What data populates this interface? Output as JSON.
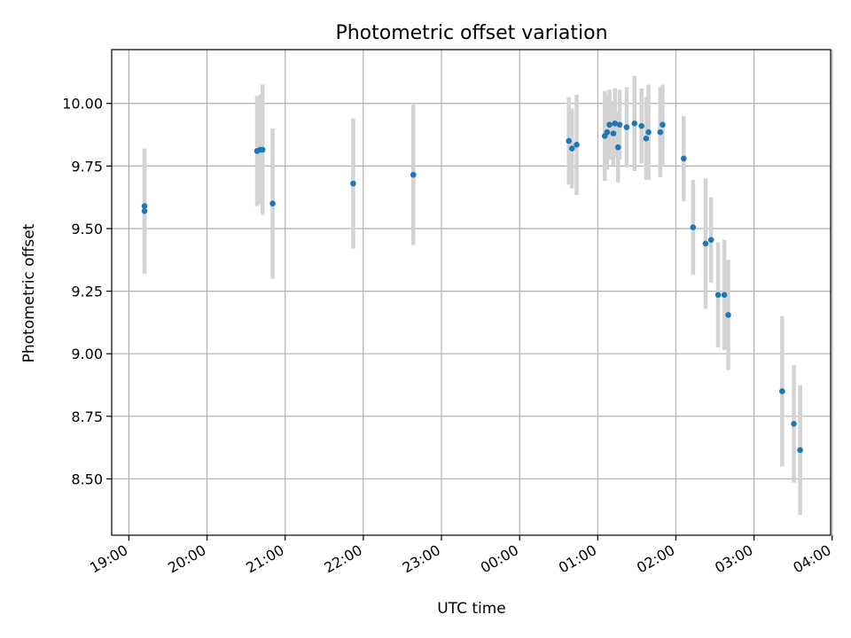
{
  "chart_data": {
    "type": "scatter",
    "title": "Photometric offset variation",
    "xlabel": "UTC time",
    "ylabel": "Photometric offset",
    "grid": true,
    "x_unit": "UTC time (hours; values past 24 fall after midnight)",
    "xlim": [
      18.78,
      27.98
    ],
    "ylim": [
      8.275,
      10.215
    ],
    "x_ticks": [
      {
        "value": 19,
        "label": "19:00"
      },
      {
        "value": 20,
        "label": "20:00"
      },
      {
        "value": 21,
        "label": "21:00"
      },
      {
        "value": 22,
        "label": "22:00"
      },
      {
        "value": 23,
        "label": "23:00"
      },
      {
        "value": 24,
        "label": "00:00"
      },
      {
        "value": 25,
        "label": "01:00"
      },
      {
        "value": 26,
        "label": "02:00"
      },
      {
        "value": 27,
        "label": "03:00"
      },
      {
        "value": 28,
        "label": "04:00"
      }
    ],
    "y_ticks": [
      {
        "value": 8.5,
        "label": "8.50"
      },
      {
        "value": 8.75,
        "label": "8.75"
      },
      {
        "value": 9.0,
        "label": "9.00"
      },
      {
        "value": 9.25,
        "label": "9.25"
      },
      {
        "value": 9.5,
        "label": "9.50"
      },
      {
        "value": 9.75,
        "label": "9.75"
      },
      {
        "value": 10.0,
        "label": "10.00"
      }
    ],
    "marker_color": "#1f77b4",
    "errorbar_color": "#d3d3d3",
    "points": [
      {
        "x": 19.2,
        "y": 9.59,
        "err": 0.23
      },
      {
        "x": 19.2,
        "y": 9.57,
        "err": 0.25
      },
      {
        "x": 20.64,
        "y": 9.81,
        "err": 0.22
      },
      {
        "x": 20.68,
        "y": 9.815,
        "err": 0.22
      },
      {
        "x": 20.71,
        "y": 9.815,
        "err": 0.26
      },
      {
        "x": 20.84,
        "y": 9.6,
        "err": 0.3
      },
      {
        "x": 21.87,
        "y": 9.68,
        "err": 0.26
      },
      {
        "x": 22.64,
        "y": 9.715,
        "err": 0.28
      },
      {
        "x": 24.63,
        "y": 9.85,
        "err": 0.175
      },
      {
        "x": 24.67,
        "y": 9.82,
        "err": 0.16
      },
      {
        "x": 24.73,
        "y": 9.835,
        "err": 0.2
      },
      {
        "x": 25.09,
        "y": 9.87,
        "err": 0.18
      },
      {
        "x": 25.12,
        "y": 9.885,
        "err": 0.15
      },
      {
        "x": 25.15,
        "y": 9.915,
        "err": 0.14
      },
      {
        "x": 25.2,
        "y": 9.88,
        "err": 0.13
      },
      {
        "x": 25.22,
        "y": 9.92,
        "err": 0.14
      },
      {
        "x": 25.26,
        "y": 9.825,
        "err": 0.14
      },
      {
        "x": 25.28,
        "y": 9.915,
        "err": 0.14
      },
      {
        "x": 25.37,
        "y": 9.905,
        "err": 0.16
      },
      {
        "x": 25.47,
        "y": 9.92,
        "err": 0.19
      },
      {
        "x": 25.56,
        "y": 9.91,
        "err": 0.15
      },
      {
        "x": 25.62,
        "y": 9.86,
        "err": 0.165
      },
      {
        "x": 25.65,
        "y": 9.885,
        "err": 0.19
      },
      {
        "x": 25.8,
        "y": 9.885,
        "err": 0.18
      },
      {
        "x": 25.83,
        "y": 9.915,
        "err": 0.16
      },
      {
        "x": 26.1,
        "y": 9.78,
        "err": 0.17
      },
      {
        "x": 26.22,
        "y": 9.505,
        "err": 0.19
      },
      {
        "x": 26.38,
        "y": 9.44,
        "err": 0.26
      },
      {
        "x": 26.45,
        "y": 9.455,
        "err": 0.17
      },
      {
        "x": 26.54,
        "y": 9.235,
        "err": 0.21
      },
      {
        "x": 26.62,
        "y": 9.235,
        "err": 0.22
      },
      {
        "x": 26.67,
        "y": 9.155,
        "err": 0.22
      },
      {
        "x": 27.36,
        "y": 8.85,
        "err": 0.3
      },
      {
        "x": 27.51,
        "y": 8.72,
        "err": 0.235
      },
      {
        "x": 27.59,
        "y": 8.615,
        "err": 0.26
      }
    ]
  }
}
